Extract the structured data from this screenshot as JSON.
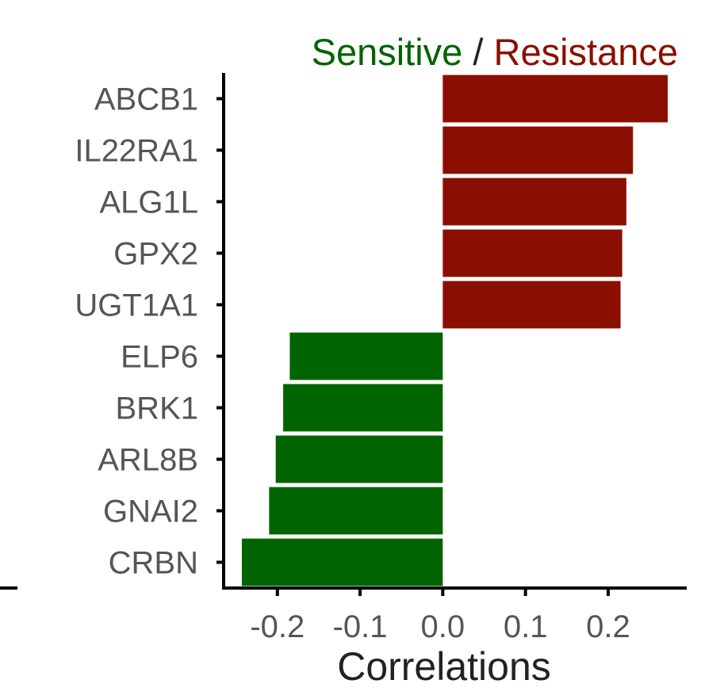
{
  "chart_data": {
    "type": "bar",
    "orientation": "horizontal",
    "title_parts": [
      {
        "text": "Sensitive",
        "color": "#006400"
      },
      {
        "text": " / ",
        "color": "#222222"
      },
      {
        "text": "Resistance",
        "color": "#8B0F00"
      }
    ],
    "xlabel": "Correlations",
    "ylabel": "",
    "categories": [
      "ABCB1",
      "IL22RA1",
      "ALG1L",
      "GPX2",
      "UGT1A1",
      "ELP6",
      "BRK1",
      "ARL8B",
      "GNAI2",
      "CRBN"
    ],
    "values": [
      0.272,
      0.23,
      0.222,
      0.217,
      0.215,
      -0.185,
      -0.193,
      -0.202,
      -0.21,
      -0.243
    ],
    "xlim": [
      -0.265,
      0.295
    ],
    "xticks": [
      -0.2,
      -0.1,
      0.0,
      0.1,
      0.2
    ],
    "xtick_labels": [
      "-0.2",
      "-0.1",
      "0.0",
      "0.1",
      "0.2"
    ],
    "colors": {
      "positive": "#8B0F00",
      "negative": "#006400"
    },
    "grid": false,
    "legend": "none"
  }
}
